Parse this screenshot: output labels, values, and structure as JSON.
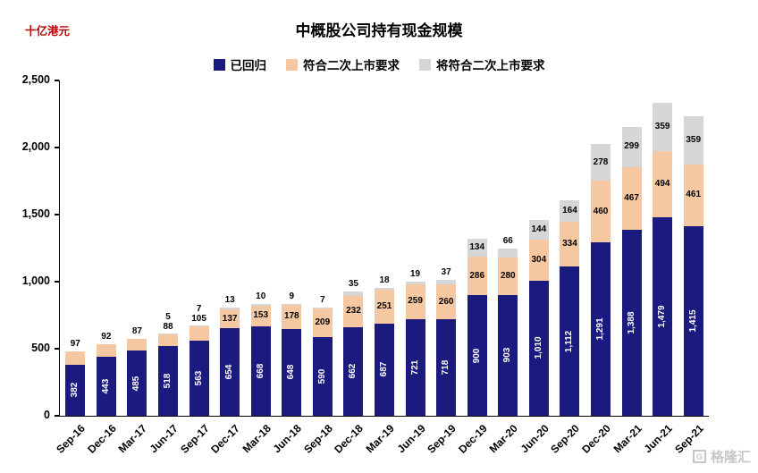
{
  "unit_label": "十亿港元",
  "title": "中概股公司持有现金规模",
  "watermark": "格隆汇",
  "chart_data": {
    "type": "stacked-bar",
    "title": "中概股公司持有现金规模",
    "ylabel": "十亿港元",
    "ylim": [
      0,
      2500
    ],
    "y_ticks": [
      "0",
      "500",
      "1,000",
      "1,500",
      "2,000",
      "2,500"
    ],
    "grid": false,
    "legend_position": "top",
    "categories": [
      "Sep-16",
      "Dec-16",
      "Mar-17",
      "Jun-17",
      "Sep-17",
      "Dec-17",
      "Mar-18",
      "Jun-18",
      "Sep-18",
      "Dec-18",
      "Mar-19",
      "Jun-19",
      "Sep-19",
      "Dec-19",
      "Mar-20",
      "Jun-20",
      "Sep-20",
      "Dec-20",
      "Mar-21",
      "Jun-21",
      "Sep-21"
    ],
    "series": [
      {
        "name": "已回归",
        "color": "#1B1A7F",
        "label_color": "#FFFFFF",
        "values": [
          382,
          443,
          485,
          518,
          563,
          654,
          668,
          648,
          590,
          662,
          687,
          721,
          718,
          900,
          903,
          1010,
          1112,
          1291,
          1388,
          1479,
          1415
        ]
      },
      {
        "name": "符合二次上市要求",
        "color": "#F6C8A2",
        "label_color": "#000000",
        "values": [
          97,
          92,
          87,
          88,
          105,
          137,
          153,
          178,
          209,
          232,
          251,
          259,
          260,
          286,
          280,
          304,
          334,
          460,
          467,
          494,
          461
        ]
      },
      {
        "name": "将符合二次上市要求",
        "color": "#D6D6D6",
        "label_color": "#000000",
        "values": [
          0,
          0,
          0,
          5,
          7,
          13,
          10,
          9,
          7,
          35,
          18,
          19,
          37,
          134,
          66,
          144,
          164,
          278,
          299,
          359,
          359
        ]
      }
    ]
  }
}
